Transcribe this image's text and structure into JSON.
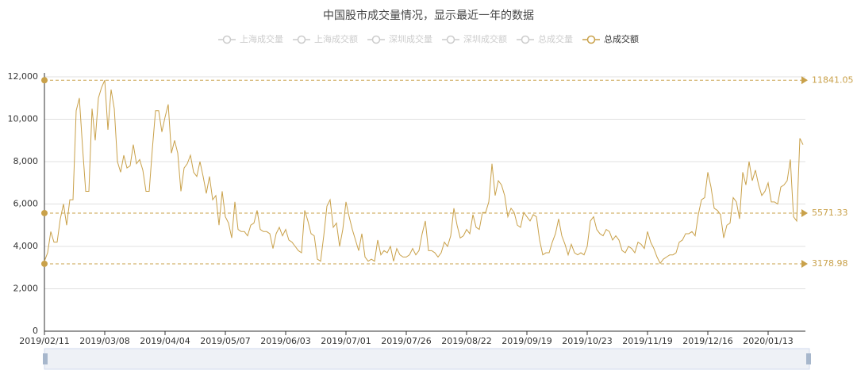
{
  "chart_data": {
    "type": "line",
    "title": "中国股市成交量情况，显示最近一年的数据",
    "legend": [
      {
        "name": "上海成交量",
        "selected": false
      },
      {
        "name": "上海成交额",
        "selected": false
      },
      {
        "name": "深圳成交量",
        "selected": false
      },
      {
        "name": "深圳成交额",
        "selected": false
      },
      {
        "name": "总成交量",
        "selected": false
      },
      {
        "name": "总成交额",
        "selected": true
      }
    ],
    "categories": [
      "2019/02/11",
      null,
      null,
      null,
      null,
      null,
      null,
      null,
      null,
      null,
      null,
      null,
      null,
      null,
      null,
      null,
      null,
      null,
      null,
      "2019/03/08",
      null,
      null,
      null,
      null,
      null,
      null,
      null,
      null,
      null,
      null,
      null,
      null,
      null,
      null,
      null,
      null,
      null,
      null,
      "2019/04/04",
      null,
      null,
      null,
      null,
      null,
      null,
      null,
      null,
      null,
      null,
      null,
      null,
      null,
      null,
      null,
      null,
      null,
      null,
      "2019/05/07",
      null,
      null,
      null,
      null,
      null,
      null,
      null,
      null,
      null,
      null,
      null,
      null,
      null,
      null,
      null,
      null,
      null,
      null,
      "2019/06/03",
      null,
      null,
      null,
      null,
      null,
      null,
      null,
      null,
      null,
      null,
      null,
      null,
      null,
      null,
      null,
      null,
      null,
      null,
      "2019/07/01",
      null,
      null,
      null,
      null,
      null,
      null,
      null,
      null,
      null,
      null,
      null,
      null,
      null,
      null,
      null,
      null,
      null,
      null,
      "2019/07/26",
      null,
      null,
      null,
      null,
      null,
      null,
      null,
      null,
      null,
      null,
      null,
      null,
      null,
      null,
      null,
      null,
      null,
      null,
      "2019/08/22",
      null,
      null,
      null,
      null,
      null,
      null,
      null,
      null,
      null,
      null,
      null,
      null,
      null,
      null,
      null,
      null,
      null,
      null,
      "2019/09/19",
      null,
      null,
      null,
      null,
      null,
      null,
      null,
      null,
      null,
      null,
      null,
      null,
      null,
      null,
      null,
      null,
      null,
      null,
      "2019/10/23",
      null,
      null,
      null,
      null,
      null,
      null,
      null,
      null,
      null,
      null,
      null,
      null,
      null,
      null,
      null,
      null,
      null,
      null,
      "2019/11/19",
      null,
      null,
      null,
      null,
      null,
      null,
      null,
      null,
      null,
      null,
      null,
      null,
      null,
      null,
      null,
      null,
      null,
      null,
      "2019/12/16",
      null,
      null,
      null,
      null,
      null,
      null,
      null,
      null,
      null,
      null,
      null,
      null,
      null,
      null,
      null,
      null,
      null,
      null,
      "2020/01/13",
      null,
      null,
      null,
      null,
      null,
      null,
      null,
      null,
      null,
      null,
      null
    ],
    "series": [
      {
        "name": "总成交额",
        "color": "#c9a14a",
        "values": [
          3300,
          3700,
          4700,
          4200,
          4200,
          5300,
          6000,
          5000,
          6200,
          6200,
          10400,
          11000,
          8700,
          6600,
          6600,
          10500,
          9000,
          11000,
          11500,
          11841,
          9500,
          11400,
          10500,
          8000,
          7500,
          8300,
          7700,
          7800,
          8800,
          7900,
          8100,
          7600,
          6600,
          6600,
          8600,
          10400,
          10400,
          9400,
          10100,
          10700,
          8400,
          9000,
          8400,
          6600,
          7700,
          7900,
          8300,
          7500,
          7300,
          8000,
          7300,
          6500,
          7300,
          6200,
          6400,
          5000,
          6600,
          5400,
          5100,
          4400,
          6100,
          4800,
          4700,
          4700,
          4500,
          5000,
          5100,
          5700,
          4800,
          4700,
          4700,
          4600,
          3900,
          4600,
          4900,
          4500,
          4800,
          4300,
          4200,
          4000,
          3800,
          3700,
          5700,
          5200,
          4600,
          4500,
          3400,
          3300,
          4500,
          5900,
          6200,
          4900,
          5100,
          4000,
          4800,
          6100,
          5400,
          4800,
          4300,
          3800,
          4600,
          3500,
          3300,
          3400,
          3300,
          4300,
          3600,
          3800,
          3700,
          4000,
          3300,
          3900,
          3600,
          3500,
          3500,
          3600,
          3900,
          3600,
          3800,
          4600,
          5200,
          3800,
          3800,
          3700,
          3500,
          3700,
          4200,
          4000,
          4500,
          5800,
          5000,
          4400,
          4500,
          4800,
          4600,
          5500,
          4900,
          4800,
          5600,
          5600,
          6100,
          7900,
          6400,
          7100,
          6900,
          6400,
          5400,
          5800,
          5600,
          5000,
          4900,
          5600,
          5400,
          5200,
          5500,
          5400,
          4300,
          3600,
          3700,
          3700,
          4200,
          4600,
          5300,
          4500,
          4100,
          3600,
          4100,
          3700,
          3600,
          3700,
          3600,
          4000,
          5200,
          5400,
          4800,
          4600,
          4500,
          4800,
          4700,
          4300,
          4500,
          4300,
          3800,
          3700,
          4000,
          3900,
          3700,
          4200,
          4100,
          3900,
          4700,
          4200,
          3900,
          3500,
          3200,
          3400,
          3500,
          3600,
          3600,
          3700,
          4200,
          4300,
          4600,
          4600,
          4700,
          4500,
          5500,
          6200,
          6300,
          7500,
          6800,
          5800,
          5700,
          5500,
          4400,
          5000,
          5100,
          6300,
          6100,
          5300,
          7500,
          6900,
          8000,
          7100,
          7600,
          6900,
          6400,
          6600,
          7000,
          6100,
          6100,
          6000,
          6800,
          6900,
          7100,
          8100,
          5400,
          5200,
          9100,
          8800
        ]
      }
    ],
    "mark_lines": [
      {
        "value": 11841.05
      },
      {
        "value": 5571.33
      },
      {
        "value": 3178.98
      }
    ],
    "ylim": [
      0,
      12000
    ],
    "yticks": [
      0,
      {
        "value": 2000,
        "label": "2,000"
      },
      {
        "value": 4000,
        "label": "4,000"
      },
      {
        "value": 6000,
        "label": "6,000"
      },
      {
        "value": 8000,
        "label": "8,000"
      },
      {
        "value": 10000,
        "label": "10,000"
      },
      {
        "value": 12000,
        "label": "12,000"
      }
    ],
    "grid": true
  }
}
